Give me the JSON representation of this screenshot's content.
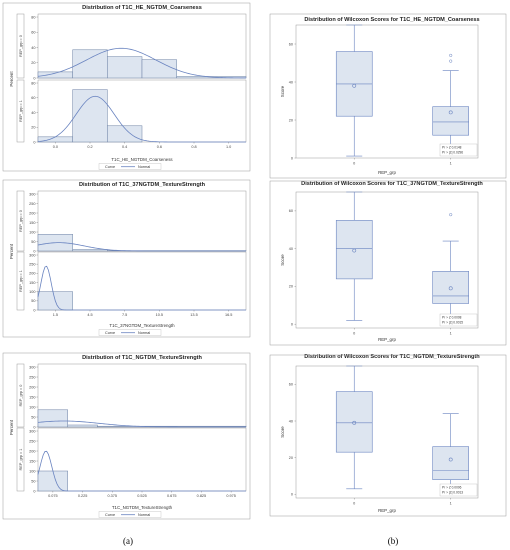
{
  "captions": [
    "(a)",
    "(b)"
  ],
  "histograms": [
    {
      "title": "Distribution of T1C_HE_NGTDM_Coarseness",
      "xlabel": "T1C_HE_NGTDM_Coarseness",
      "ylabel": "Percent",
      "xticks": [
        "0.0",
        "0.2",
        "0.4",
        "0.6",
        "0.8",
        "1.0"
      ],
      "xtick_values": [
        0.0,
        0.2,
        0.4,
        0.6,
        0.8,
        1.0
      ],
      "xlim": [
        -0.1,
        1.1
      ],
      "yticks": [
        "0",
        "20",
        "40",
        "60",
        "80"
      ],
      "ylim": [
        0,
        80
      ],
      "legend": {
        "title": "Curve",
        "entry": "Normal"
      },
      "panels": [
        {
          "label": "REP_grp = 0",
          "bins": [
            [
              -0.1,
              0.1,
              8
            ],
            [
              0.1,
              0.3,
              37
            ],
            [
              0.3,
              0.5,
              28
            ],
            [
              0.5,
              0.7,
              24
            ],
            [
              0.7,
              1.1,
              2
            ]
          ],
          "normal": {
            "mean": 0.38,
            "sd": 0.2,
            "peak": 39
          }
        },
        {
          "label": "REP_grp = 1",
          "bins": [
            [
              -0.1,
              0.1,
              7
            ],
            [
              0.1,
              0.3,
              71
            ],
            [
              0.3,
              0.5,
              22
            ]
          ],
          "normal": {
            "mean": 0.23,
            "sd": 0.11,
            "peak": 62
          }
        }
      ]
    },
    {
      "title": "Distribution of T1C_37NGTDM_TextureStrength",
      "xlabel": "T1C_37NGTDM_TextureStrength",
      "ylabel": "Percent",
      "xticks": [
        "1.5",
        "4.5",
        "7.5",
        "10.5",
        "13.5",
        "16.5"
      ],
      "xtick_values": [
        1.5,
        4.5,
        7.5,
        10.5,
        13.5,
        16.5
      ],
      "xlim": [
        0,
        18
      ],
      "yticks": [
        "0",
        "50",
        "100",
        "150",
        "200",
        "250",
        "300"
      ],
      "ylim": [
        0,
        300
      ],
      "legend": {
        "title": "Curve",
        "entry": "Normal"
      },
      "panels": [
        {
          "label": "REP_grp = 0",
          "bins": [
            [
              0,
              3,
              88
            ],
            [
              3,
              6,
              8
            ],
            [
              6,
              18,
              2
            ]
          ],
          "normal": {
            "mean": 1.8,
            "sd": 2.2,
            "peak": 44
          }
        },
        {
          "label": "REP_grp = 1",
          "bins": [
            [
              0,
              3,
              100
            ]
          ],
          "normal": {
            "mean": 0.7,
            "sd": 0.45,
            "peak": 240
          }
        }
      ]
    },
    {
      "title": "Distribution of T1C_NGTDM_TextureStrength",
      "xlabel": "T1C_NGTDM_TextureStrength",
      "ylabel": "Percent",
      "xticks": [
        "0.075",
        "0.225",
        "0.375",
        "0.525",
        "0.675",
        "0.825",
        "0.975"
      ],
      "xtick_values": [
        0.075,
        0.225,
        0.375,
        0.525,
        0.675,
        0.825,
        0.975
      ],
      "xlim": [
        0,
        1.05
      ],
      "yticks": [
        "0",
        "50",
        "100",
        "150",
        "200",
        "250",
        "300"
      ],
      "ylim": [
        0,
        300
      ],
      "legend": {
        "title": "Curve",
        "entry": "Normal"
      },
      "panels": [
        {
          "label": "REP_grp = 0",
          "bins": [
            [
              0,
              0.15,
              86
            ],
            [
              0.15,
              0.3,
              10
            ],
            [
              0.3,
              1.05,
              4
            ]
          ],
          "normal": {
            "mean": 0.13,
            "sd": 0.18,
            "peak": 30
          }
        },
        {
          "label": "REP_grp = 1",
          "bins": [
            [
              0,
              0.15,
              100
            ]
          ],
          "normal": {
            "mean": 0.04,
            "sd": 0.03,
            "peak": 200
          }
        }
      ]
    }
  ],
  "boxplots": [
    {
      "title": "Distribution of Wilcoxon Scores for T1C_HE_NGTDM_Coarseness",
      "xlabel": "REP_grp",
      "ylabel": "Score",
      "ylim": [
        0,
        70
      ],
      "yticks": [
        "0",
        "20",
        "40",
        "60"
      ],
      "ytick_values": [
        0,
        20,
        40,
        60
      ],
      "categories": [
        "0",
        "1"
      ],
      "boxes": [
        {
          "min": 1,
          "q1": 22,
          "median": 39,
          "q3": 56,
          "max": 70,
          "mean": 38,
          "outliers": []
        },
        {
          "min": 5,
          "q1": 12,
          "median": 19,
          "q3": 27,
          "max": 46,
          "mean": 24,
          "outliers": [
            51,
            54
          ]
        }
      ],
      "stats": [
        "Pr > Z     0.0148",
        "Pr > |Z|   0.0296"
      ]
    },
    {
      "title": "Distribution of Wilcoxon Scores for T1C_37NGTDM_TextureStrength",
      "xlabel": "REP_grp",
      "ylabel": "Score",
      "ylim": [
        -2,
        70
      ],
      "yticks": [
        "0",
        "20",
        "40",
        "60"
      ],
      "ytick_values": [
        0,
        20,
        40,
        60
      ],
      "categories": [
        "0",
        "1"
      ],
      "boxes": [
        {
          "min": 2,
          "q1": 24,
          "median": 40,
          "q3": 55,
          "max": 70,
          "mean": 39,
          "outliers": []
        },
        {
          "min": 1,
          "q1": 11,
          "median": 15,
          "q3": 28,
          "max": 44,
          "mean": 19,
          "outliers": [
            58
          ]
        }
      ],
      "stats": [
        "Pr > Z     0.0008",
        "Pr > |Z|   0.0015"
      ]
    },
    {
      "title": "Distribution of Wilcoxon Scores for T1C_NGTDM_TextureStrength",
      "xlabel": "REP_grp",
      "ylabel": "Score",
      "ylim": [
        -2,
        70
      ],
      "yticks": [
        "0",
        "20",
        "40",
        "60"
      ],
      "ytick_values": [
        0,
        20,
        40,
        60
      ],
      "categories": [
        "0",
        "1"
      ],
      "boxes": [
        {
          "min": 3,
          "q1": 23,
          "median": 39,
          "q3": 56,
          "max": 70,
          "mean": 39,
          "outliers": []
        },
        {
          "min": 1,
          "q1": 8,
          "median": 13,
          "q3": 26,
          "max": 44,
          "mean": 19,
          "outliers": []
        }
      ],
      "stats": [
        "Pr > Z     0.0006",
        "Pr > |Z|   0.0013"
      ]
    }
  ],
  "chart_data": [
    {
      "type": "bar",
      "title": "Distribution of T1C_HE_NGTDM_Coarseness",
      "xlabel": "T1C_HE_NGTDM_Coarseness",
      "ylabel": "Percent",
      "series": [
        {
          "name": "REP_grp = 0",
          "values": [
            8,
            37,
            28,
            24,
            2
          ]
        },
        {
          "name": "REP_grp = 1",
          "values": [
            7,
            71,
            22
          ]
        }
      ]
    },
    {
      "type": "bar",
      "title": "Distribution of T1C_37NGTDM_TextureStrength",
      "xlabel": "T1C_37NGTDM_TextureStrength",
      "ylabel": "Percent",
      "series": [
        {
          "name": "REP_grp = 0",
          "values": [
            88,
            8,
            2
          ]
        },
        {
          "name": "REP_grp = 1",
          "values": [
            100
          ]
        }
      ]
    },
    {
      "type": "bar",
      "title": "Distribution of T1C_NGTDM_TextureStrength",
      "xlabel": "T1C_NGTDM_TextureStrength",
      "ylabel": "Percent",
      "series": [
        {
          "name": "REP_grp = 0",
          "values": [
            86,
            10,
            4
          ]
        },
        {
          "name": "REP_grp = 1",
          "values": [
            100
          ]
        }
      ]
    },
    {
      "type": "box",
      "title": "Distribution of Wilcoxon Scores for T1C_HE_NGTDM_Coarseness",
      "xlabel": "REP_grp",
      "ylabel": "Score",
      "categories": [
        "0",
        "1"
      ],
      "medians": [
        39,
        19
      ],
      "means": [
        38,
        24
      ]
    },
    {
      "type": "box",
      "title": "Distribution of Wilcoxon Scores for T1C_37NGTDM_TextureStrength",
      "xlabel": "REP_grp",
      "ylabel": "Score",
      "categories": [
        "0",
        "1"
      ],
      "medians": [
        40,
        15
      ],
      "means": [
        39,
        19
      ]
    },
    {
      "type": "box",
      "title": "Distribution of Wilcoxon Scores for T1C_NGTDM_TextureStrength",
      "xlabel": "REP_grp",
      "ylabel": "Score",
      "categories": [
        "0",
        "1"
      ],
      "medians": [
        39,
        13
      ],
      "means": [
        39,
        19
      ]
    }
  ]
}
